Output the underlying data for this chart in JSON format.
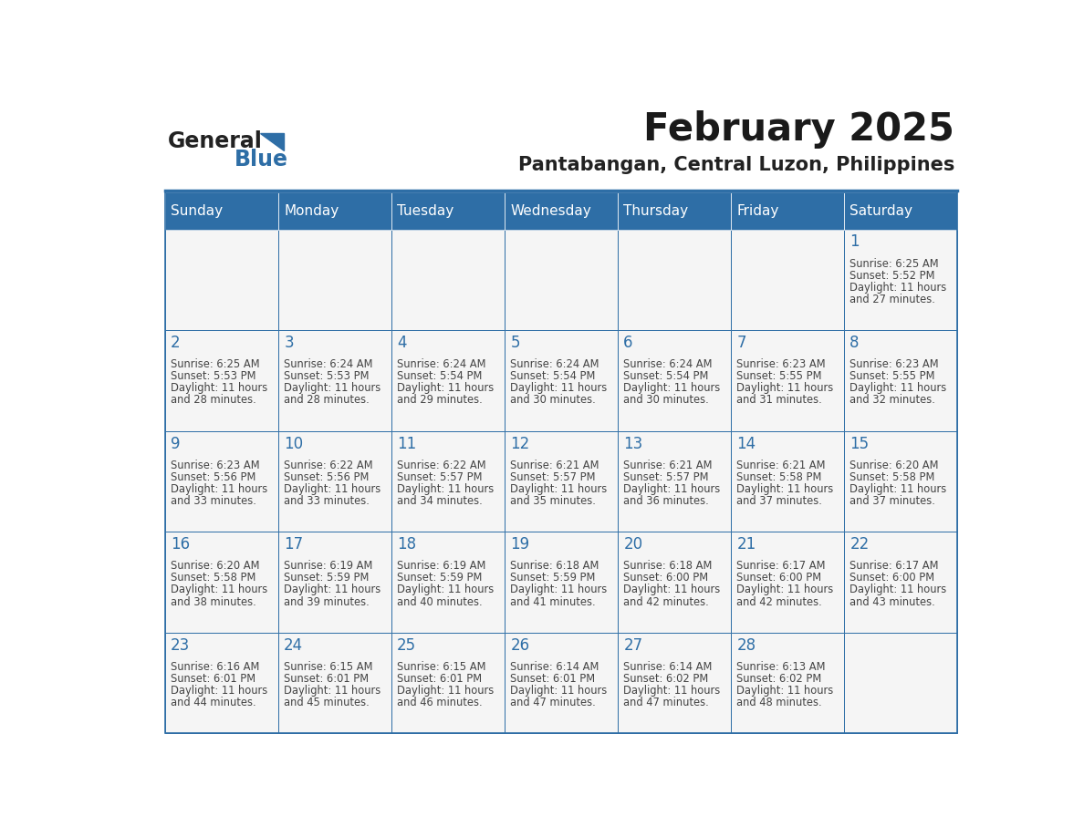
{
  "title": "February 2025",
  "subtitle": "Pantabangan, Central Luzon, Philippines",
  "days_of_week": [
    "Sunday",
    "Monday",
    "Tuesday",
    "Wednesday",
    "Thursday",
    "Friday",
    "Saturday"
  ],
  "header_bg_color": "#2E6EA6",
  "header_text_color": "#FFFFFF",
  "cell_bg_color": "#F5F5F5",
  "border_color": "#2E6EA6",
  "day_num_color": "#2E6EA6",
  "text_color": "#444444",
  "logo_general_color": "#222222",
  "logo_blue_color": "#2E6EA6",
  "calendar_data": [
    [
      {
        "day": null,
        "sunrise": null,
        "sunset": null,
        "daylight": null
      },
      {
        "day": null,
        "sunrise": null,
        "sunset": null,
        "daylight": null
      },
      {
        "day": null,
        "sunrise": null,
        "sunset": null,
        "daylight": null
      },
      {
        "day": null,
        "sunrise": null,
        "sunset": null,
        "daylight": null
      },
      {
        "day": null,
        "sunrise": null,
        "sunset": null,
        "daylight": null
      },
      {
        "day": null,
        "sunrise": null,
        "sunset": null,
        "daylight": null
      },
      {
        "day": 1,
        "sunrise": "6:25 AM",
        "sunset": "5:52 PM",
        "daylight": "11 hours and 27 minutes."
      }
    ],
    [
      {
        "day": 2,
        "sunrise": "6:25 AM",
        "sunset": "5:53 PM",
        "daylight": "11 hours and 28 minutes."
      },
      {
        "day": 3,
        "sunrise": "6:24 AM",
        "sunset": "5:53 PM",
        "daylight": "11 hours and 28 minutes."
      },
      {
        "day": 4,
        "sunrise": "6:24 AM",
        "sunset": "5:54 PM",
        "daylight": "11 hours and 29 minutes."
      },
      {
        "day": 5,
        "sunrise": "6:24 AM",
        "sunset": "5:54 PM",
        "daylight": "11 hours and 30 minutes."
      },
      {
        "day": 6,
        "sunrise": "6:24 AM",
        "sunset": "5:54 PM",
        "daylight": "11 hours and 30 minutes."
      },
      {
        "day": 7,
        "sunrise": "6:23 AM",
        "sunset": "5:55 PM",
        "daylight": "11 hours and 31 minutes."
      },
      {
        "day": 8,
        "sunrise": "6:23 AM",
        "sunset": "5:55 PM",
        "daylight": "11 hours and 32 minutes."
      }
    ],
    [
      {
        "day": 9,
        "sunrise": "6:23 AM",
        "sunset": "5:56 PM",
        "daylight": "11 hours and 33 minutes."
      },
      {
        "day": 10,
        "sunrise": "6:22 AM",
        "sunset": "5:56 PM",
        "daylight": "11 hours and 33 minutes."
      },
      {
        "day": 11,
        "sunrise": "6:22 AM",
        "sunset": "5:57 PM",
        "daylight": "11 hours and 34 minutes."
      },
      {
        "day": 12,
        "sunrise": "6:21 AM",
        "sunset": "5:57 PM",
        "daylight": "11 hours and 35 minutes."
      },
      {
        "day": 13,
        "sunrise": "6:21 AM",
        "sunset": "5:57 PM",
        "daylight": "11 hours and 36 minutes."
      },
      {
        "day": 14,
        "sunrise": "6:21 AM",
        "sunset": "5:58 PM",
        "daylight": "11 hours and 37 minutes."
      },
      {
        "day": 15,
        "sunrise": "6:20 AM",
        "sunset": "5:58 PM",
        "daylight": "11 hours and 37 minutes."
      }
    ],
    [
      {
        "day": 16,
        "sunrise": "6:20 AM",
        "sunset": "5:58 PM",
        "daylight": "11 hours and 38 minutes."
      },
      {
        "day": 17,
        "sunrise": "6:19 AM",
        "sunset": "5:59 PM",
        "daylight": "11 hours and 39 minutes."
      },
      {
        "day": 18,
        "sunrise": "6:19 AM",
        "sunset": "5:59 PM",
        "daylight": "11 hours and 40 minutes."
      },
      {
        "day": 19,
        "sunrise": "6:18 AM",
        "sunset": "5:59 PM",
        "daylight": "11 hours and 41 minutes."
      },
      {
        "day": 20,
        "sunrise": "6:18 AM",
        "sunset": "6:00 PM",
        "daylight": "11 hours and 42 minutes."
      },
      {
        "day": 21,
        "sunrise": "6:17 AM",
        "sunset": "6:00 PM",
        "daylight": "11 hours and 42 minutes."
      },
      {
        "day": 22,
        "sunrise": "6:17 AM",
        "sunset": "6:00 PM",
        "daylight": "11 hours and 43 minutes."
      }
    ],
    [
      {
        "day": 23,
        "sunrise": "6:16 AM",
        "sunset": "6:01 PM",
        "daylight": "11 hours and 44 minutes."
      },
      {
        "day": 24,
        "sunrise": "6:15 AM",
        "sunset": "6:01 PM",
        "daylight": "11 hours and 45 minutes."
      },
      {
        "day": 25,
        "sunrise": "6:15 AM",
        "sunset": "6:01 PM",
        "daylight": "11 hours and 46 minutes."
      },
      {
        "day": 26,
        "sunrise": "6:14 AM",
        "sunset": "6:01 PM",
        "daylight": "11 hours and 47 minutes."
      },
      {
        "day": 27,
        "sunrise": "6:14 AM",
        "sunset": "6:02 PM",
        "daylight": "11 hours and 47 minutes."
      },
      {
        "day": 28,
        "sunrise": "6:13 AM",
        "sunset": "6:02 PM",
        "daylight": "11 hours and 48 minutes."
      },
      {
        "day": null,
        "sunrise": null,
        "sunset": null,
        "daylight": null
      }
    ]
  ]
}
